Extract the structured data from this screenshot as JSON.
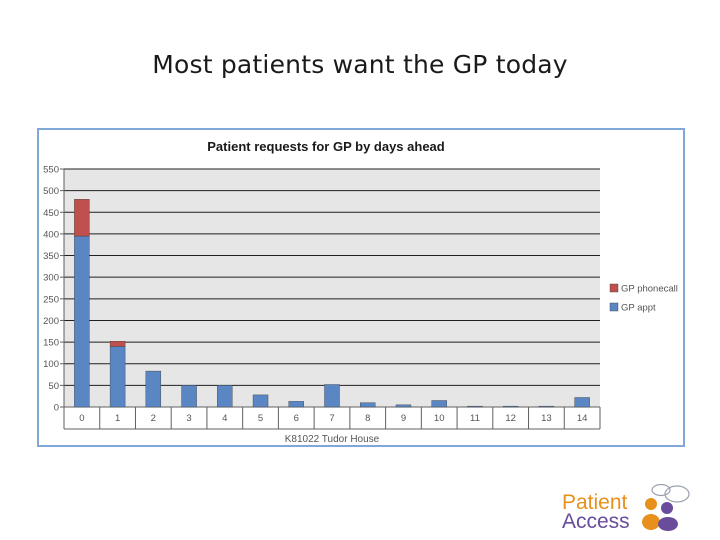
{
  "slide": {
    "title": "Most patients want the GP today"
  },
  "logo": {
    "line1": "Patient",
    "line2": "Access",
    "colors": {
      "orange": "#e8901c",
      "purple": "#6a4c9c"
    },
    "icon": "people-speech-bubbles-icon"
  },
  "chart_data": {
    "type": "bar",
    "stacked": true,
    "title": "Patient requests for GP by days ahead",
    "xlabel": "K81022 Tudor House",
    "ylabel": "",
    "categories": [
      "0",
      "1",
      "2",
      "3",
      "4",
      "5",
      "6",
      "7",
      "8",
      "9",
      "10",
      "11",
      "12",
      "13",
      "14"
    ],
    "ylim": [
      0,
      550
    ],
    "yticks": [
      0,
      50,
      100,
      150,
      200,
      250,
      300,
      350,
      400,
      450,
      500,
      550
    ],
    "grid": true,
    "legend_position": "right",
    "series": [
      {
        "name": "GP appt",
        "color": "#5b86c4",
        "values": [
          395,
          140,
          83,
          50,
          50,
          28,
          13,
          52,
          10,
          5,
          15,
          2,
          2,
          2,
          22
        ]
      },
      {
        "name": "GP phonecall",
        "color": "#c0504d",
        "values": [
          85,
          12,
          0,
          0,
          0,
          0,
          0,
          0,
          0,
          0,
          0,
          0,
          0,
          0,
          0
        ]
      }
    ]
  }
}
